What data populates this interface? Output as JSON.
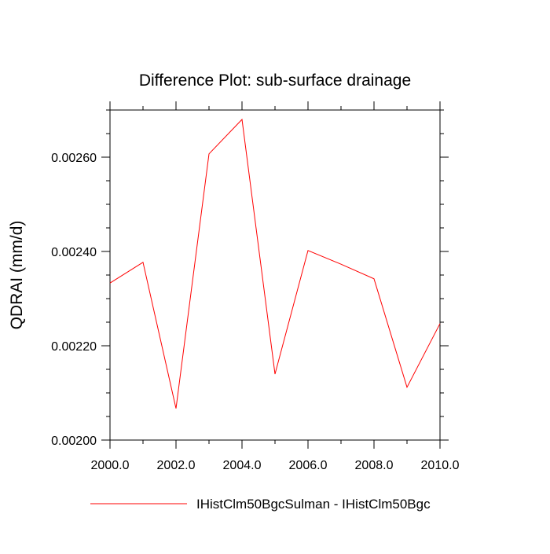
{
  "chart_data": {
    "type": "line",
    "title": "Difference Plot: sub-surface drainage",
    "xlabel": "",
    "ylabel": "QDRAI  (mm/d)",
    "xlim": [
      2000,
      2010
    ],
    "ylim": [
      0.002,
      0.0027
    ],
    "x_ticks": [
      2000,
      2002,
      2004,
      2006,
      2008,
      2010
    ],
    "x_tick_labels": [
      "2000.0",
      "2002.0",
      "2004.0",
      "2006.0",
      "2008.0",
      "2010.0"
    ],
    "y_ticks": [
      0.002,
      0.0022,
      0.0024,
      0.0026
    ],
    "y_tick_labels": [
      "0.00200",
      "0.00220",
      "0.00240",
      "0.00260"
    ],
    "grid": false,
    "legend_position": "bottom",
    "series": [
      {
        "name": "IHistClm50BgcSulman - IHistClm50Bgc",
        "color": "#ff0000",
        "x": [
          2000,
          2001,
          2002,
          2003,
          2004,
          2005,
          2006,
          2007,
          2008,
          2009,
          2010
        ],
        "values": [
          0.002333,
          0.002377,
          0.002067,
          0.002607,
          0.00268,
          0.00214,
          0.002402,
          0.002373,
          0.002342,
          0.002112,
          0.002247
        ]
      }
    ]
  }
}
